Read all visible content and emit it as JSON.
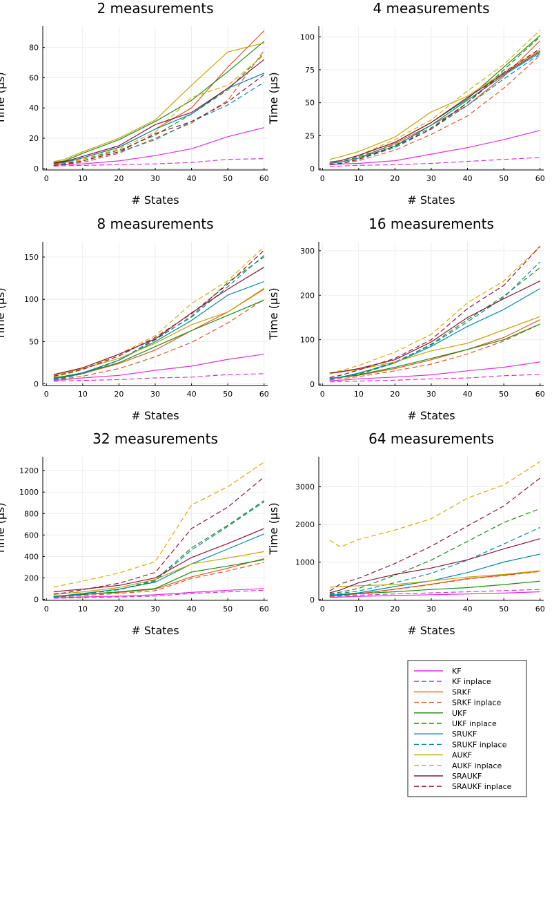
{
  "figure": {
    "legend": [
      {
        "label": "KF",
        "color": "#e22ce1",
        "dash": false
      },
      {
        "label": "KF inplace",
        "color": "#e22ce1",
        "dash": true
      },
      {
        "label": "SRKF",
        "color": "#e2561f",
        "dash": false
      },
      {
        "label": "SRKF inplace",
        "color": "#e2561f",
        "dash": true
      },
      {
        "label": "UKF",
        "color": "#1a8b0f",
        "dash": false
      },
      {
        "label": "UKF inplace",
        "color": "#1a8b0f",
        "dash": true
      },
      {
        "label": "SRUKF",
        "color": "#0088a3",
        "dash": false
      },
      {
        "label": "SRUKF inplace",
        "color": "#0088a3",
        "dash": true
      },
      {
        "label": "AUKF",
        "color": "#c8a100",
        "dash": false
      },
      {
        "label": "AUKF inplace",
        "color": "#e0a800",
        "dash": true
      },
      {
        "label": "SRAUKF",
        "color": "#8c1237",
        "dash": false
      },
      {
        "label": "SRAUKF inplace",
        "color": "#8c1237",
        "dash": true
      }
    ]
  },
  "chart_data": [
    {
      "type": "line",
      "title": "2 measurements",
      "xlabel": "# States",
      "ylabel": "Time (µs)",
      "xlim": [
        -1,
        61
      ],
      "ylim": [
        -1,
        94
      ],
      "xticks": [
        0,
        10,
        20,
        30,
        40,
        50,
        60
      ],
      "yticks": [
        0,
        20,
        40,
        60,
        80
      ],
      "x": [
        2,
        5,
        10,
        20,
        30,
        40,
        50,
        60
      ],
      "series": [
        {
          "name": "KF",
          "values": [
            2,
            2.5,
            3,
            5,
            8.5,
            13,
            21,
            27
          ]
        },
        {
          "name": "KF inplace",
          "values": [
            1.5,
            1.8,
            2,
            2.5,
            3,
            4,
            6,
            6.5
          ]
        },
        {
          "name": "SRKF",
          "values": [
            3.5,
            4,
            7,
            14,
            26,
            40,
            67,
            91
          ]
        },
        {
          "name": "SRKF inplace",
          "values": [
            2,
            2.5,
            4,
            10,
            20,
            30,
            45,
            78
          ]
        },
        {
          "name": "UKF",
          "values": [
            4,
            5,
            10,
            19,
            31,
            45,
            64,
            84
          ]
        },
        {
          "name": "UKF inplace",
          "values": [
            2.5,
            3,
            6,
            12,
            22,
            36,
            52,
            76
          ]
        },
        {
          "name": "SRUKF",
          "values": [
            3,
            4,
            7,
            14,
            26,
            36,
            53,
            63
          ]
        },
        {
          "name": "SRUKF inplace",
          "values": [
            2,
            2.5,
            5,
            11,
            19,
            31,
            42,
            57
          ]
        },
        {
          "name": "AUKF",
          "values": [
            4.5,
            6,
            11,
            20,
            32,
            55,
            77,
            83
          ]
        },
        {
          "name": "AUKF inplace",
          "values": [
            2.5,
            3.5,
            6,
            13,
            24,
            47,
            55,
            75
          ]
        },
        {
          "name": "SRAUKF",
          "values": [
            3.5,
            4.5,
            8,
            15,
            29,
            37,
            53,
            72
          ]
        },
        {
          "name": "SRAUKF inplace",
          "values": [
            2,
            3,
            5,
            11,
            23,
            31,
            44,
            62
          ]
        }
      ]
    },
    {
      "type": "line",
      "title": "4 measurements",
      "xlabel": "# States",
      "ylabel": "Time (µs)",
      "xlim": [
        -1,
        61
      ],
      "ylim": [
        -1,
        108
      ],
      "xticks": [
        0,
        10,
        20,
        30,
        40,
        50,
        60
      ],
      "yticks": [
        0,
        25,
        50,
        75,
        100
      ],
      "x": [
        2,
        5,
        10,
        20,
        30,
        40,
        50,
        60
      ],
      "series": [
        {
          "name": "KF",
          "values": [
            3,
            3.5,
            4,
            6,
            11,
            16,
            22,
            29
          ]
        },
        {
          "name": "KF inplace",
          "values": [
            1.5,
            2,
            2.5,
            3,
            4,
            5.5,
            7,
            8.5
          ]
        },
        {
          "name": "SRKF",
          "values": [
            4,
            5,
            8,
            19,
            33,
            48,
            70,
            97
          ]
        },
        {
          "name": "SRKF inplace",
          "values": [
            3,
            4,
            6,
            14,
            26,
            40,
            61,
            86
          ]
        },
        {
          "name": "UKF",
          "values": [
            5,
            6,
            10,
            20,
            35,
            53,
            77,
            101
          ]
        },
        {
          "name": "UKF inplace",
          "values": [
            4,
            5,
            9,
            18,
            31,
            50,
            75,
            100
          ]
        },
        {
          "name": "SRUKF",
          "values": [
            4,
            5,
            8,
            17,
            33,
            52,
            71,
            88
          ]
        },
        {
          "name": "SRUKF inplace",
          "values": [
            3,
            4,
            7,
            16,
            30,
            48,
            68,
            87
          ]
        },
        {
          "name": "AUKF",
          "values": [
            7,
            9,
            13,
            24,
            43,
            55,
            73,
            90
          ]
        },
        {
          "name": "AUKF inplace",
          "values": [
            5,
            6,
            10,
            22,
            37,
            59,
            79,
            105
          ]
        },
        {
          "name": "SRAUKF",
          "values": [
            5,
            6,
            10,
            20,
            35,
            54,
            72,
            89
          ]
        },
        {
          "name": "SRAUKF inplace",
          "values": [
            3,
            4,
            7,
            17,
            30,
            50,
            73,
            91
          ]
        }
      ]
    },
    {
      "type": "line",
      "title": "8 measurements",
      "xlabel": "# States",
      "ylabel": "Time (µs)",
      "xlim": [
        -1,
        61
      ],
      "ylim": [
        -2,
        168
      ],
      "xticks": [
        0,
        10,
        20,
        30,
        40,
        50,
        60
      ],
      "yticks": [
        0,
        50,
        100,
        150
      ],
      "x": [
        2,
        5,
        10,
        20,
        30,
        40,
        50,
        60
      ],
      "series": [
        {
          "name": "KF",
          "values": [
            4,
            5,
            7,
            10,
            16,
            21,
            29,
            35
          ]
        },
        {
          "name": "KF inplace",
          "values": [
            3,
            3.5,
            4,
            5,
            7,
            8,
            11,
            12
          ]
        },
        {
          "name": "SRKF",
          "values": [
            6,
            8,
            12,
            24,
            40,
            63,
            85,
            112
          ]
        },
        {
          "name": "SRKF inplace",
          "values": [
            5,
            6,
            9,
            18,
            32,
            49,
            72,
            100
          ]
        },
        {
          "name": "UKF",
          "values": [
            7,
            9,
            13,
            25,
            44,
            63,
            81,
            99
          ]
        },
        {
          "name": "UKF inplace",
          "values": [
            6,
            8,
            12,
            28,
            52,
            80,
            120,
            150
          ]
        },
        {
          "name": "SRUKF",
          "values": [
            6,
            8,
            13,
            28,
            50,
            75,
            105,
            121
          ]
        },
        {
          "name": "SRUKF inplace",
          "values": [
            5,
            7,
            12,
            28,
            53,
            79,
            115,
            152
          ]
        },
        {
          "name": "AUKF",
          "values": [
            10,
            13,
            18,
            30,
            48,
            70,
            85,
            113
          ]
        },
        {
          "name": "AUKF inplace",
          "values": [
            8,
            11,
            17,
            35,
            57,
            95,
            122,
            162
          ]
        },
        {
          "name": "SRAUKF",
          "values": [
            11,
            14,
            19,
            35,
            53,
            84,
            112,
            138
          ]
        },
        {
          "name": "SRAUKF inplace",
          "values": [
            9,
            12,
            17,
            33,
            55,
            83,
            118,
            158
          ]
        }
      ]
    },
    {
      "type": "line",
      "title": "16 measurements",
      "xlabel": "# States",
      "ylabel": "Time (µs)",
      "xlim": [
        -1,
        61
      ],
      "ylim": [
        -3,
        320
      ],
      "xticks": [
        0,
        10,
        20,
        30,
        40,
        50,
        60
      ],
      "yticks": [
        0,
        100,
        200,
        300
      ],
      "x": [
        2,
        5,
        10,
        20,
        30,
        40,
        50,
        60
      ],
      "series": [
        {
          "name": "KF",
          "values": [
            8,
            9,
            12,
            16,
            21,
            30,
            38,
            50
          ]
        },
        {
          "name": "KF inplace",
          "values": [
            5,
            6,
            7,
            9,
            12,
            14,
            19,
            22
          ]
        },
        {
          "name": "SRKF",
          "values": [
            12,
            15,
            20,
            35,
            55,
            78,
            105,
            145
          ]
        },
        {
          "name": "SRKF inplace",
          "values": [
            10,
            12,
            17,
            30,
            45,
            68,
            97,
            135
          ]
        },
        {
          "name": "UKF",
          "values": [
            13,
            16,
            21,
            38,
            58,
            78,
            100,
            135
          ]
        },
        {
          "name": "UKF inplace",
          "values": [
            12,
            15,
            22,
            48,
            90,
            145,
            198,
            262
          ]
        },
        {
          "name": "SRUKF",
          "values": [
            13,
            16,
            25,
            48,
            85,
            130,
            168,
            215
          ]
        },
        {
          "name": "SRUKF inplace",
          "values": [
            12,
            15,
            24,
            50,
            88,
            140,
            195,
            275
          ]
        },
        {
          "name": "AUKF",
          "values": [
            24,
            27,
            33,
            50,
            75,
            92,
            122,
            152
          ]
        },
        {
          "name": "AUKF inplace",
          "values": [
            25,
            30,
            42,
            72,
            112,
            183,
            232,
            310
          ]
        },
        {
          "name": "SRAUKF",
          "values": [
            25,
            28,
            35,
            55,
            95,
            150,
            192,
            232
          ]
        },
        {
          "name": "SRAUKF inplace",
          "values": [
            15,
            20,
            32,
            58,
            100,
            170,
            222,
            310
          ]
        }
      ]
    },
    {
      "type": "line",
      "title": "32 measurements",
      "xlabel": "# States",
      "ylabel": "Time (µs)",
      "xlim": [
        -1,
        61
      ],
      "ylim": [
        -10,
        1330
      ],
      "xticks": [
        0,
        10,
        20,
        30,
        40,
        50,
        60
      ],
      "yticks": [
        0,
        200,
        400,
        600,
        800,
        1000,
        1200
      ],
      "x": [
        2,
        5,
        10,
        20,
        30,
        40,
        50,
        60
      ],
      "series": [
        {
          "name": "KF",
          "values": [
            15,
            17,
            22,
            30,
            42,
            65,
            85,
            100
          ]
        },
        {
          "name": "KF inplace",
          "values": [
            10,
            12,
            15,
            22,
            30,
            55,
            70,
            85
          ]
        },
        {
          "name": "SRKF",
          "values": [
            25,
            30,
            45,
            65,
            95,
            210,
            290,
            380
          ]
        },
        {
          "name": "SRKF inplace",
          "values": [
            20,
            25,
            35,
            55,
            80,
            195,
            265,
            345
          ]
        },
        {
          "name": "UKF",
          "values": [
            30,
            35,
            45,
            70,
            100,
            255,
            310,
            370
          ]
        },
        {
          "name": "UKF inplace",
          "values": [
            25,
            30,
            50,
            90,
            180,
            480,
            690,
            920
          ]
        },
        {
          "name": "SRUKF",
          "values": [
            30,
            35,
            55,
            95,
            160,
            330,
            470,
            610
          ]
        },
        {
          "name": "SRUKF inplace",
          "values": [
            25,
            30,
            50,
            90,
            170,
            460,
            680,
            910
          ]
        },
        {
          "name": "AUKF",
          "values": [
            45,
            55,
            70,
            110,
            185,
            330,
            385,
            445
          ]
        },
        {
          "name": "AUKF inplace",
          "values": [
            115,
            135,
            170,
            245,
            350,
            880,
            1050,
            1280
          ]
        },
        {
          "name": "SRAUKF",
          "values": [
            70,
            80,
            95,
            130,
            200,
            390,
            520,
            660
          ]
        },
        {
          "name": "SRAUKF inplace",
          "values": [
            50,
            60,
            90,
            150,
            250,
            660,
            860,
            1140
          ]
        }
      ]
    },
    {
      "type": "line",
      "title": "64 measurements",
      "xlabel": "# States",
      "ylabel": "Time (µs)",
      "xlim": [
        -1,
        61
      ],
      "ylim": [
        -20,
        3800
      ],
      "xticks": [
        0,
        10,
        20,
        30,
        40,
        50,
        60
      ],
      "yticks": [
        0,
        1000,
        2000,
        3000
      ],
      "x": [
        2,
        5,
        10,
        20,
        30,
        40,
        50,
        60
      ],
      "series": [
        {
          "name": "KF",
          "values": [
            60,
            70,
            85,
            110,
            130,
            150,
            175,
            210
          ]
        },
        {
          "name": "KF inplace",
          "values": [
            80,
            95,
            120,
            150,
            180,
            210,
            240,
            270
          ]
        },
        {
          "name": "SRKF",
          "values": [
            100,
            120,
            160,
            280,
            410,
            560,
            650,
            760
          ]
        },
        {
          "name": "SRKF inplace",
          "values": [
            90,
            110,
            150,
            270,
            400,
            550,
            640,
            750
          ]
        },
        {
          "name": "UKF",
          "values": [
            110,
            130,
            160,
            210,
            270,
            320,
            400,
            490
          ]
        },
        {
          "name": "UKF inplace",
          "values": [
            160,
            200,
            300,
            650,
            1050,
            1550,
            2050,
            2420
          ]
        },
        {
          "name": "SRUKF",
          "values": [
            120,
            140,
            180,
            350,
            500,
            720,
            1000,
            1210
          ]
        },
        {
          "name": "SRUKF inplace",
          "values": [
            140,
            170,
            230,
            450,
            700,
            1050,
            1480,
            1920
          ]
        },
        {
          "name": "AUKF",
          "values": [
            330,
            350,
            370,
            400,
            500,
            600,
            670,
            770
          ]
        },
        {
          "name": "AUKF inplace",
          "values": [
            1580,
            1400,
            1600,
            1850,
            2150,
            2700,
            3050,
            3670
          ]
        },
        {
          "name": "SRAUKF",
          "values": [
            180,
            260,
            450,
            670,
            840,
            1060,
            1350,
            1620
          ]
        },
        {
          "name": "SRAUKF inplace",
          "values": [
            230,
            420,
            570,
            960,
            1420,
            1960,
            2490,
            3230
          ]
        }
      ]
    }
  ]
}
